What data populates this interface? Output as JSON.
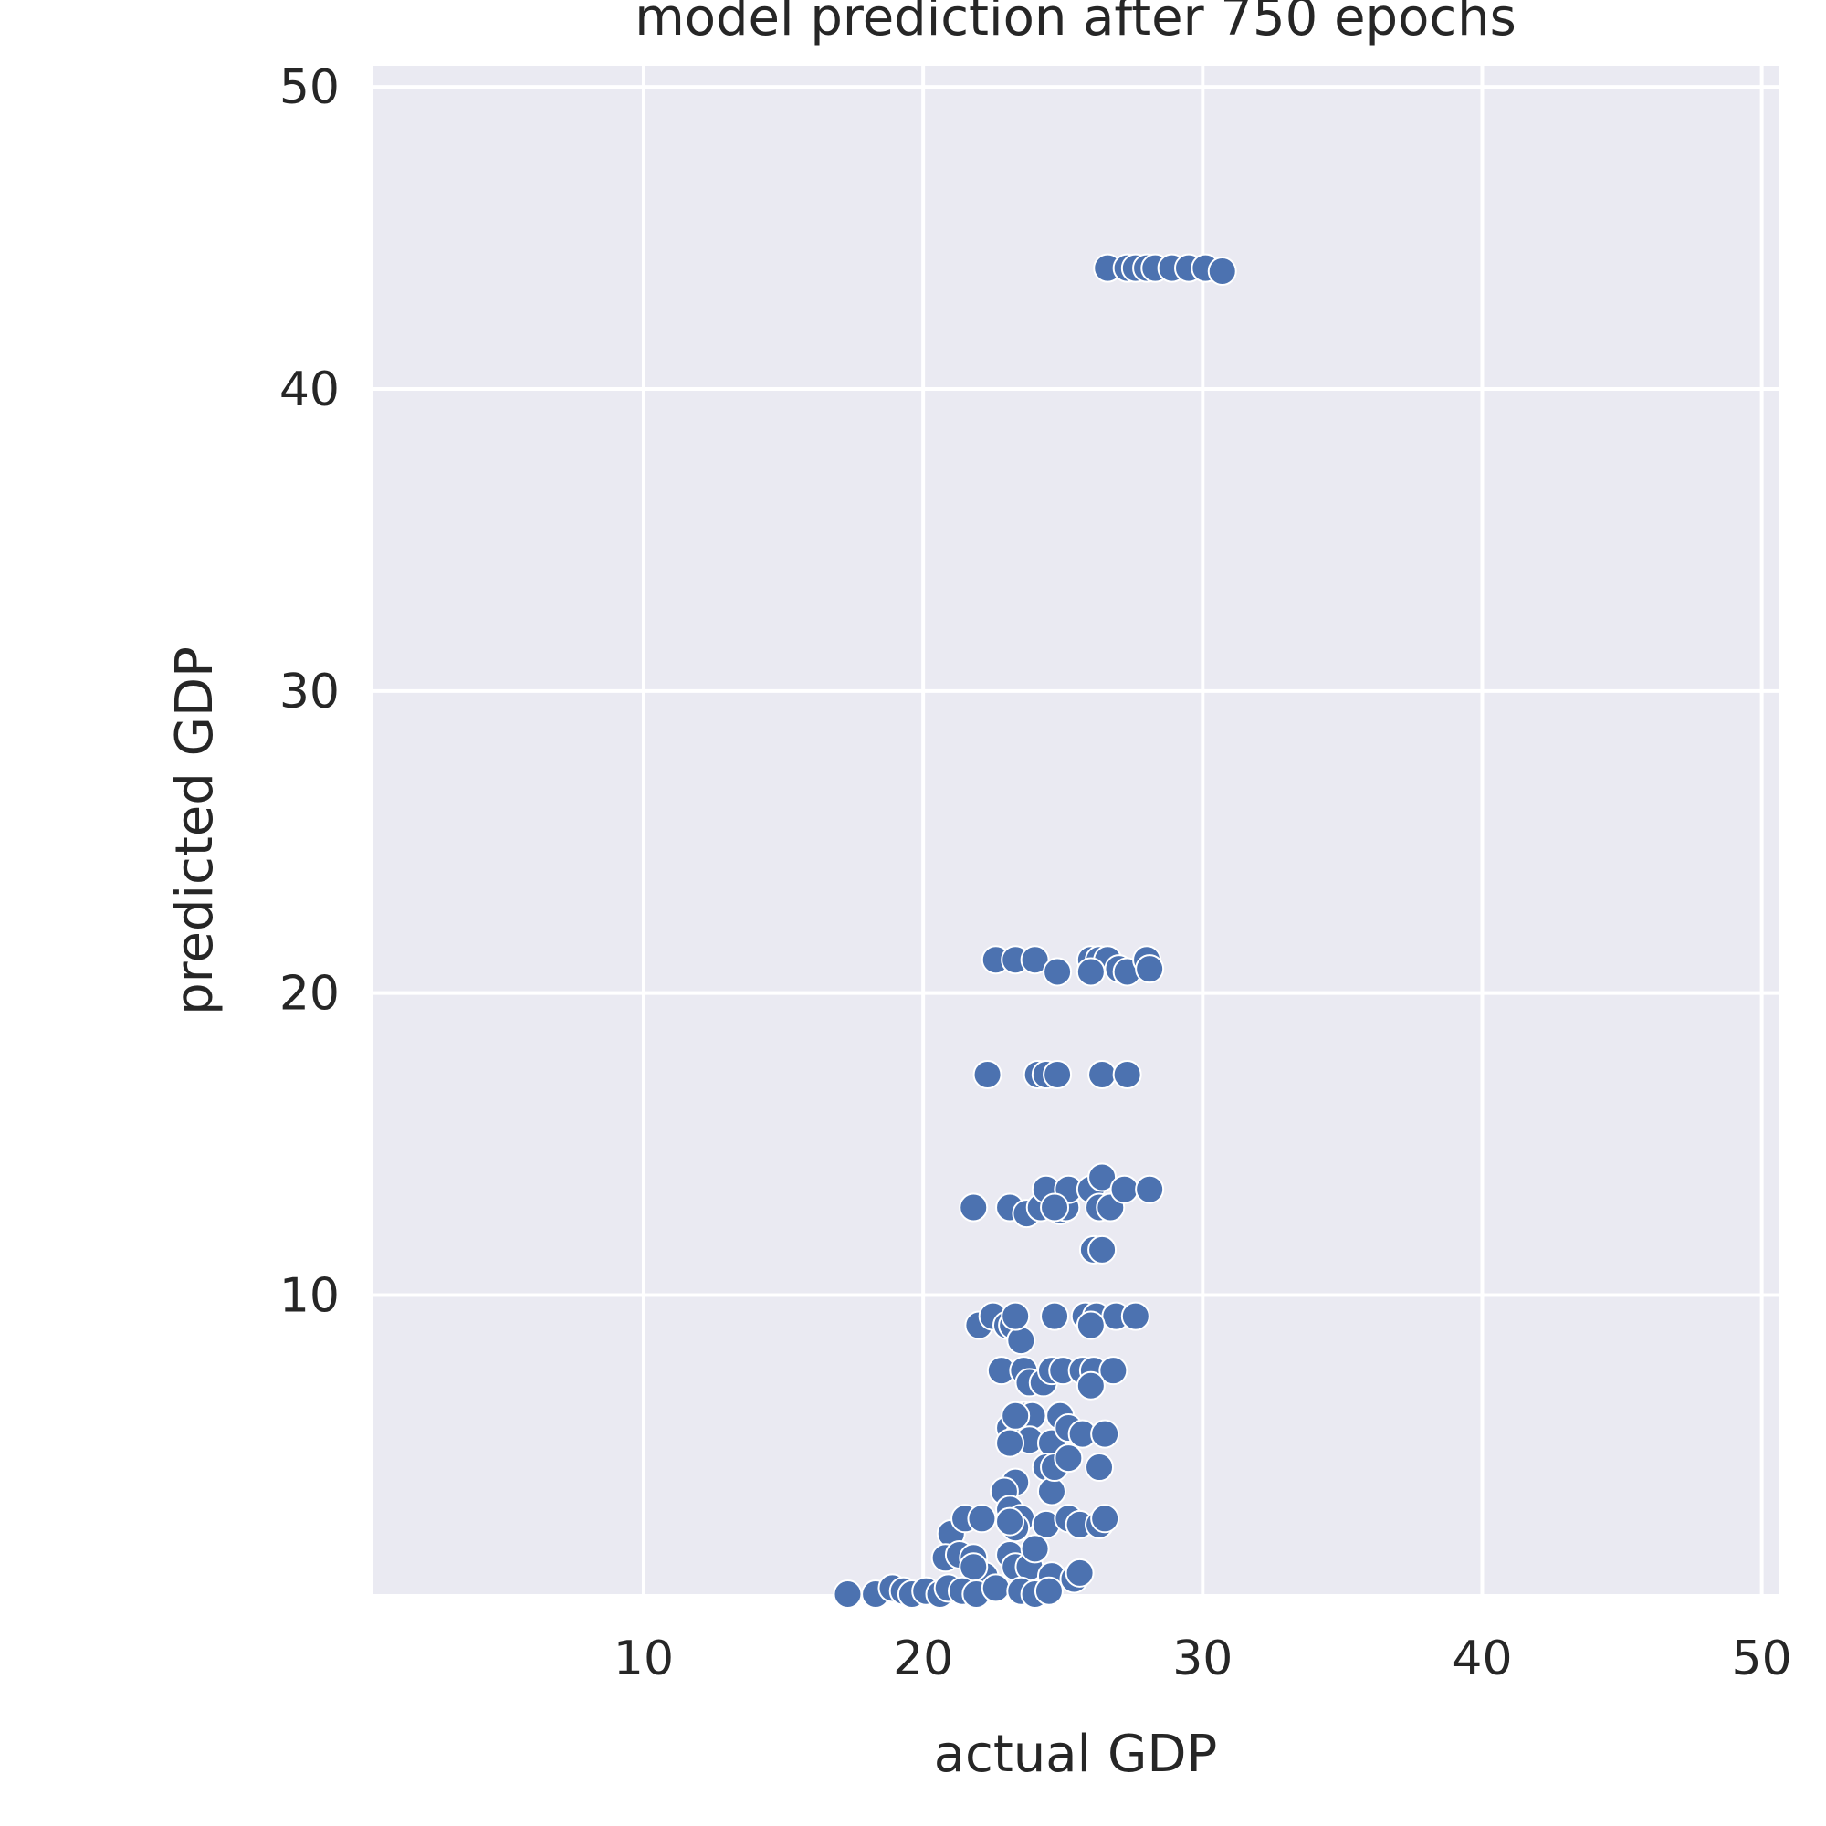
{
  "chart_data": {
    "type": "scatter",
    "title": "model prediction after 750 epochs",
    "xlabel": "actual GDP",
    "ylabel": "predicted GDP",
    "xlim": [
      0.3,
      50.6
    ],
    "ylim": [
      0.1,
      50.7
    ],
    "x_ticks": [
      10,
      20,
      30,
      40,
      50
    ],
    "y_ticks": [
      10,
      20,
      30,
      40,
      50
    ],
    "grid": true,
    "colors": {
      "point": "#4c72b0",
      "background": "#eaeaf2",
      "grid": "#ffffff"
    },
    "points": [
      {
        "x": 26.6,
        "y": 44.0
      },
      {
        "x": 27.3,
        "y": 44.0
      },
      {
        "x": 27.6,
        "y": 44.0
      },
      {
        "x": 28.0,
        "y": 44.0
      },
      {
        "x": 28.3,
        "y": 44.0
      },
      {
        "x": 28.9,
        "y": 44.0
      },
      {
        "x": 29.5,
        "y": 44.0
      },
      {
        "x": 30.1,
        "y": 44.0
      },
      {
        "x": 30.7,
        "y": 43.9
      },
      {
        "x": 22.6,
        "y": 21.1
      },
      {
        "x": 23.3,
        "y": 21.1
      },
      {
        "x": 24.0,
        "y": 21.1
      },
      {
        "x": 24.8,
        "y": 20.7
      },
      {
        "x": 26.0,
        "y": 21.1
      },
      {
        "x": 26.3,
        "y": 21.1
      },
      {
        "x": 26.6,
        "y": 21.1
      },
      {
        "x": 27.0,
        "y": 20.8
      },
      {
        "x": 27.3,
        "y": 20.7
      },
      {
        "x": 28.0,
        "y": 21.1
      },
      {
        "x": 28.1,
        "y": 20.8
      },
      {
        "x": 26.0,
        "y": 20.7
      },
      {
        "x": 22.3,
        "y": 17.3
      },
      {
        "x": 24.1,
        "y": 17.3
      },
      {
        "x": 24.4,
        "y": 17.3
      },
      {
        "x": 24.8,
        "y": 17.3
      },
      {
        "x": 26.4,
        "y": 17.3
      },
      {
        "x": 27.3,
        "y": 17.3
      },
      {
        "x": 21.8,
        "y": 12.9
      },
      {
        "x": 23.1,
        "y": 12.9
      },
      {
        "x": 23.7,
        "y": 12.7
      },
      {
        "x": 24.2,
        "y": 12.9
      },
      {
        "x": 24.4,
        "y": 13.5
      },
      {
        "x": 24.9,
        "y": 12.8
      },
      {
        "x": 25.1,
        "y": 12.9
      },
      {
        "x": 25.2,
        "y": 13.5
      },
      {
        "x": 26.0,
        "y": 13.5
      },
      {
        "x": 26.3,
        "y": 12.9
      },
      {
        "x": 26.4,
        "y": 13.9
      },
      {
        "x": 26.7,
        "y": 12.9
      },
      {
        "x": 27.2,
        "y": 13.5
      },
      {
        "x": 28.1,
        "y": 13.5
      },
      {
        "x": 24.7,
        "y": 12.9
      },
      {
        "x": 26.1,
        "y": 11.5
      },
      {
        "x": 26.4,
        "y": 11.5
      },
      {
        "x": 22.0,
        "y": 9.0
      },
      {
        "x": 22.5,
        "y": 9.3
      },
      {
        "x": 23.0,
        "y": 9.0
      },
      {
        "x": 23.2,
        "y": 9.0
      },
      {
        "x": 23.5,
        "y": 8.5
      },
      {
        "x": 24.7,
        "y": 9.3
      },
      {
        "x": 25.8,
        "y": 9.3
      },
      {
        "x": 26.2,
        "y": 9.3
      },
      {
        "x": 26.9,
        "y": 9.3
      },
      {
        "x": 27.6,
        "y": 9.3
      },
      {
        "x": 26.0,
        "y": 9.0
      },
      {
        "x": 23.3,
        "y": 9.3
      },
      {
        "x": 22.8,
        "y": 7.5
      },
      {
        "x": 23.6,
        "y": 7.5
      },
      {
        "x": 23.8,
        "y": 7.1
      },
      {
        "x": 24.3,
        "y": 7.1
      },
      {
        "x": 24.6,
        "y": 7.5
      },
      {
        "x": 25.0,
        "y": 7.5
      },
      {
        "x": 25.7,
        "y": 7.5
      },
      {
        "x": 26.1,
        "y": 7.5
      },
      {
        "x": 26.8,
        "y": 7.5
      },
      {
        "x": 26.0,
        "y": 7.0
      },
      {
        "x": 23.1,
        "y": 5.6
      },
      {
        "x": 23.4,
        "y": 5.3
      },
      {
        "x": 23.6,
        "y": 6.0
      },
      {
        "x": 23.9,
        "y": 6.0
      },
      {
        "x": 23.8,
        "y": 5.2
      },
      {
        "x": 24.6,
        "y": 5.1
      },
      {
        "x": 24.9,
        "y": 6.0
      },
      {
        "x": 25.2,
        "y": 5.6
      },
      {
        "x": 25.7,
        "y": 5.4
      },
      {
        "x": 26.5,
        "y": 5.4
      },
      {
        "x": 23.1,
        "y": 5.1
      },
      {
        "x": 23.3,
        "y": 6.0
      },
      {
        "x": 23.3,
        "y": 3.8
      },
      {
        "x": 22.9,
        "y": 3.5
      },
      {
        "x": 24.4,
        "y": 4.3
      },
      {
        "x": 24.6,
        "y": 3.5
      },
      {
        "x": 24.7,
        "y": 4.3
      },
      {
        "x": 25.2,
        "y": 4.6
      },
      {
        "x": 26.3,
        "y": 4.3
      },
      {
        "x": 21.0,
        "y": 2.1
      },
      {
        "x": 21.5,
        "y": 2.6
      },
      {
        "x": 22.1,
        "y": 2.6
      },
      {
        "x": 23.1,
        "y": 2.9
      },
      {
        "x": 23.5,
        "y": 2.6
      },
      {
        "x": 23.3,
        "y": 2.3
      },
      {
        "x": 24.4,
        "y": 2.4
      },
      {
        "x": 25.2,
        "y": 2.6
      },
      {
        "x": 25.6,
        "y": 2.4
      },
      {
        "x": 26.3,
        "y": 2.4
      },
      {
        "x": 26.5,
        "y": 2.6
      },
      {
        "x": 23.1,
        "y": 2.5
      },
      {
        "x": 20.8,
        "y": 1.3
      },
      {
        "x": 21.3,
        "y": 1.4
      },
      {
        "x": 21.8,
        "y": 1.3
      },
      {
        "x": 22.2,
        "y": 0.7
      },
      {
        "x": 23.1,
        "y": 1.4
      },
      {
        "x": 23.3,
        "y": 1.0
      },
      {
        "x": 23.8,
        "y": 1.0
      },
      {
        "x": 24.0,
        "y": 1.6
      },
      {
        "x": 24.6,
        "y": 0.7
      },
      {
        "x": 25.4,
        "y": 0.6
      },
      {
        "x": 25.6,
        "y": 0.8
      },
      {
        "x": 21.8,
        "y": 1.0
      },
      {
        "x": 17.3,
        "y": 0.1
      },
      {
        "x": 18.3,
        "y": 0.1
      },
      {
        "x": 18.9,
        "y": 0.3
      },
      {
        "x": 19.3,
        "y": 0.2
      },
      {
        "x": 19.6,
        "y": 0.1
      },
      {
        "x": 20.1,
        "y": 0.2
      },
      {
        "x": 20.6,
        "y": 0.1
      },
      {
        "x": 20.9,
        "y": 0.3
      },
      {
        "x": 21.4,
        "y": 0.2
      },
      {
        "x": 21.9,
        "y": 0.1
      },
      {
        "x": 22.6,
        "y": 0.3
      },
      {
        "x": 23.5,
        "y": 0.2
      },
      {
        "x": 24.0,
        "y": 0.1
      },
      {
        "x": 24.5,
        "y": 0.2
      }
    ]
  }
}
